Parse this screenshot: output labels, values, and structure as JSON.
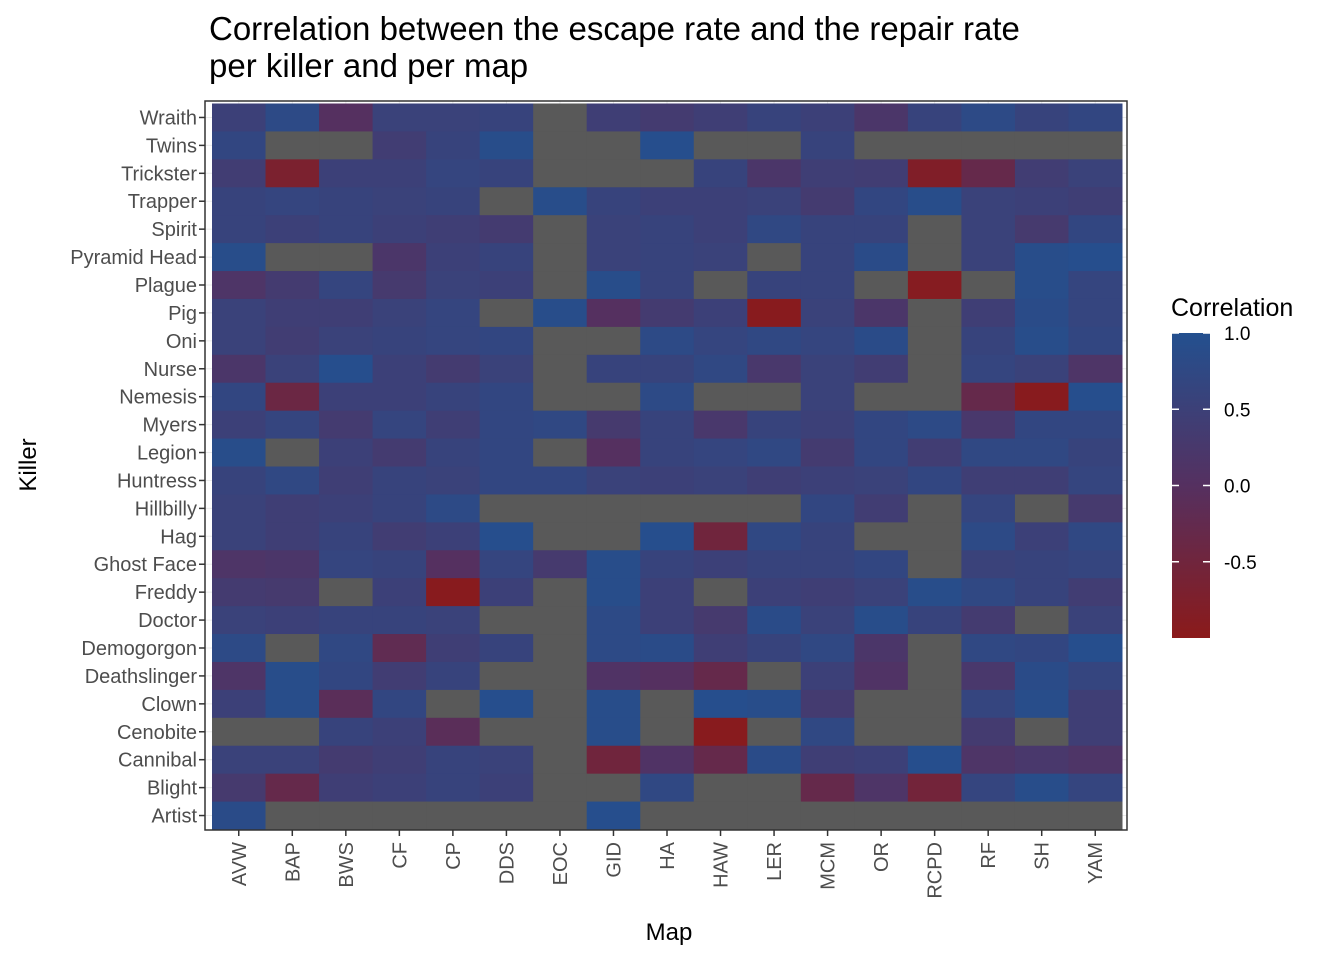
{
  "chart_data": {
    "type": "heatmap",
    "title": [
      "Correlation between the escape rate and the repair rate",
      "per killer and per map"
    ],
    "xlabel": "Map",
    "ylabel": "Killer",
    "x_categories": [
      "AVW",
      "BAP",
      "BWS",
      "CF",
      "CP",
      "DDS",
      "EOC",
      "GID",
      "HA",
      "HAW",
      "LER",
      "MCM",
      "OR",
      "RCPD",
      "RF",
      "SH",
      "YAM"
    ],
    "y_categories": [
      "Wraith",
      "Twins",
      "Trickster",
      "Trapper",
      "Spirit",
      "Pyramid Head",
      "Plague",
      "Pig",
      "Oni",
      "Nurse",
      "Nemesis",
      "Myers",
      "Legion",
      "Huntress",
      "Hillbilly",
      "Hag",
      "Ghost Face",
      "Freddy",
      "Doctor",
      "Demogorgon",
      "Deathslinger",
      "Clown",
      "Cenobite",
      "Cannibal",
      "Blight",
      "Artist"
    ],
    "values": [
      [
        0.5,
        0.8,
        0.0,
        0.55,
        0.55,
        0.6,
        null,
        0.45,
        0.35,
        0.45,
        0.6,
        0.5,
        0.2,
        0.6,
        0.8,
        0.6,
        0.7
      ],
      [
        0.7,
        null,
        null,
        0.4,
        0.6,
        0.9,
        null,
        null,
        0.95,
        null,
        null,
        0.6,
        null,
        null,
        null,
        null,
        null
      ],
      [
        0.4,
        -0.7,
        0.5,
        0.5,
        0.65,
        0.6,
        null,
        null,
        null,
        0.6,
        0.2,
        0.45,
        0.4,
        -0.8,
        -0.3,
        0.4,
        0.55
      ],
      [
        0.6,
        0.65,
        0.6,
        0.55,
        0.6,
        null,
        0.9,
        0.6,
        0.5,
        0.5,
        0.55,
        0.35,
        0.7,
        0.9,
        0.55,
        0.5,
        0.45
      ],
      [
        0.6,
        0.5,
        0.6,
        0.5,
        0.45,
        0.35,
        null,
        0.55,
        0.6,
        0.5,
        0.75,
        0.6,
        0.6,
        null,
        0.55,
        0.3,
        0.7
      ],
      [
        0.9,
        null,
        null,
        0.2,
        0.5,
        0.6,
        null,
        0.55,
        0.6,
        0.55,
        null,
        0.6,
        0.85,
        null,
        0.55,
        0.9,
        0.95
      ],
      [
        0.15,
        0.35,
        0.65,
        0.3,
        0.55,
        0.5,
        null,
        0.9,
        0.6,
        null,
        0.6,
        0.6,
        null,
        -0.9,
        null,
        0.9,
        0.65
      ],
      [
        0.55,
        0.45,
        0.45,
        0.55,
        0.65,
        null,
        0.9,
        0.0,
        0.35,
        0.5,
        -0.95,
        0.55,
        0.2,
        null,
        0.45,
        0.85,
        0.65
      ],
      [
        0.55,
        0.4,
        0.55,
        0.6,
        0.65,
        0.7,
        null,
        null,
        0.8,
        0.65,
        0.75,
        0.65,
        0.85,
        null,
        0.6,
        0.9,
        0.7
      ],
      [
        0.2,
        0.55,
        0.95,
        0.5,
        0.35,
        0.55,
        null,
        0.6,
        0.6,
        0.75,
        0.25,
        0.55,
        0.4,
        null,
        0.65,
        0.55,
        0.15
      ],
      [
        0.7,
        -0.4,
        0.5,
        0.5,
        0.6,
        0.7,
        null,
        null,
        0.8,
        null,
        null,
        0.55,
        null,
        null,
        -0.3,
        -0.95,
        0.95
      ],
      [
        0.5,
        0.65,
        0.35,
        0.65,
        0.45,
        0.7,
        0.75,
        0.3,
        0.6,
        0.25,
        0.6,
        0.5,
        0.7,
        0.8,
        0.25,
        0.7,
        0.7
      ],
      [
        0.9,
        null,
        0.5,
        0.35,
        0.6,
        0.7,
        null,
        0.0,
        0.6,
        0.65,
        0.75,
        0.35,
        0.7,
        0.4,
        0.75,
        0.75,
        0.6
      ],
      [
        0.6,
        0.75,
        0.45,
        0.6,
        0.55,
        0.7,
        0.7,
        0.55,
        0.5,
        0.55,
        0.45,
        0.5,
        0.55,
        0.7,
        0.45,
        0.45,
        0.65
      ],
      [
        0.55,
        0.45,
        0.5,
        0.6,
        0.8,
        null,
        null,
        null,
        null,
        null,
        null,
        0.7,
        0.4,
        null,
        0.65,
        null,
        0.3
      ],
      [
        0.55,
        0.45,
        0.6,
        0.4,
        0.5,
        0.95,
        null,
        null,
        0.95,
        -0.5,
        0.75,
        0.6,
        null,
        null,
        0.8,
        0.5,
        0.75
      ],
      [
        0.15,
        0.2,
        0.65,
        0.6,
        0.0,
        0.65,
        0.3,
        0.9,
        0.6,
        0.5,
        0.6,
        0.6,
        0.7,
        null,
        0.55,
        0.6,
        0.65
      ],
      [
        0.35,
        0.3,
        null,
        0.5,
        -0.95,
        0.5,
        null,
        0.9,
        0.5,
        null,
        0.5,
        0.45,
        0.55,
        0.9,
        0.75,
        0.6,
        0.4
      ],
      [
        0.55,
        0.5,
        0.6,
        0.6,
        0.55,
        null,
        null,
        0.8,
        0.5,
        0.3,
        0.85,
        0.55,
        0.9,
        0.6,
        0.35,
        null,
        0.55
      ],
      [
        0.8,
        null,
        0.75,
        -0.2,
        0.45,
        0.6,
        null,
        0.8,
        0.85,
        0.45,
        0.6,
        0.75,
        0.2,
        null,
        0.75,
        0.7,
        0.95
      ],
      [
        0.15,
        0.9,
        0.7,
        0.4,
        0.6,
        null,
        null,
        0.1,
        0.0,
        -0.3,
        null,
        0.5,
        0.1,
        null,
        0.25,
        0.85,
        0.65
      ],
      [
        0.5,
        0.9,
        -0.1,
        0.7,
        null,
        0.95,
        null,
        0.9,
        null,
        0.95,
        0.9,
        0.35,
        null,
        null,
        0.65,
        0.9,
        0.45
      ],
      [
        null,
        null,
        0.6,
        0.5,
        -0.1,
        null,
        null,
        0.9,
        null,
        -0.95,
        null,
        0.75,
        null,
        null,
        0.35,
        null,
        0.45
      ],
      [
        0.55,
        0.55,
        0.35,
        0.45,
        0.6,
        0.55,
        null,
        -0.5,
        0.1,
        -0.3,
        0.85,
        0.45,
        0.5,
        0.95,
        0.15,
        0.25,
        0.15
      ],
      [
        0.3,
        -0.3,
        0.45,
        0.5,
        0.6,
        0.5,
        null,
        null,
        0.75,
        null,
        null,
        -0.3,
        0.15,
        -0.55,
        0.65,
        0.9,
        0.65
      ],
      [
        0.85,
        null,
        null,
        null,
        null,
        null,
        null,
        0.95,
        null,
        null,
        null,
        null,
        null,
        null,
        null,
        null,
        null
      ]
    ],
    "legend": {
      "title": "Correlation",
      "ticks": [
        "1.0",
        "0.5",
        "0.0",
        "-0.5"
      ],
      "tick_values": [
        1.0,
        0.5,
        0.0,
        -0.5
      ],
      "range": [
        -1.0,
        1.0
      ],
      "low_color": "#8B1A1A",
      "high_color": "#23508F",
      "na_color": "#595959"
    },
    "grid": true,
    "legend_position": "right"
  }
}
